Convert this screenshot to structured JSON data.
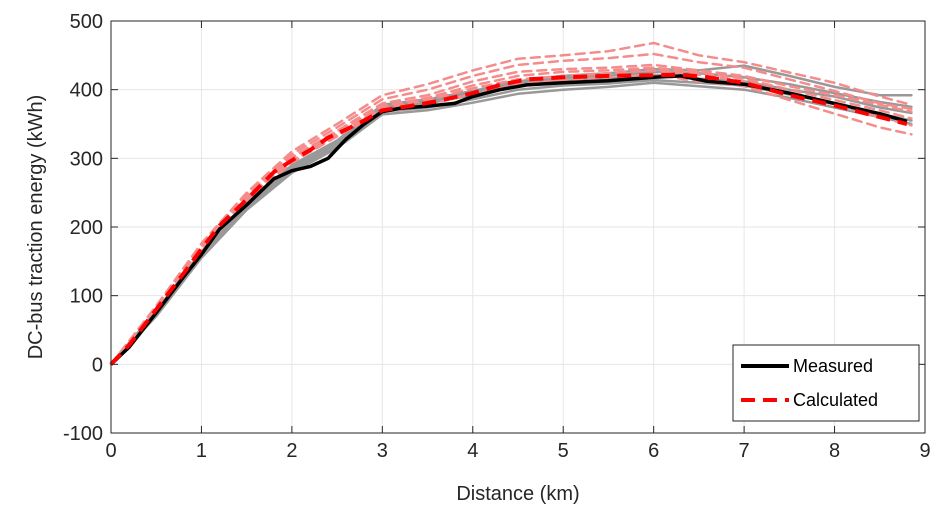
{
  "chart_data": {
    "type": "line",
    "title": "",
    "xlabel": "Distance (km)",
    "ylabel": "DC-bus traction energy (kWh)",
    "xlim": [
      0,
      9
    ],
    "ylim": [
      -100,
      500
    ],
    "xticks": [
      0,
      1,
      2,
      3,
      4,
      5,
      6,
      7,
      8,
      9
    ],
    "yticks": [
      -100,
      0,
      100,
      200,
      300,
      400,
      500
    ],
    "xtick_labels": [
      "0",
      "1",
      "2",
      "3",
      "4",
      "5",
      "6",
      "7",
      "8",
      "9"
    ],
    "ytick_labels": [
      "-100",
      "0",
      "100",
      "200",
      "300",
      "400",
      "500"
    ],
    "grid": true,
    "legend": "bottom-right",
    "series": [
      {
        "name": "Measured",
        "color": "#000000",
        "style": "solid",
        "x": [
          0,
          0.2,
          0.5,
          0.8,
          1.0,
          1.2,
          1.5,
          1.8,
          2.0,
          2.2,
          2.4,
          2.6,
          2.8,
          3.0,
          3.2,
          3.5,
          3.8,
          4.0,
          4.3,
          4.6,
          5.0,
          5.5,
          6.0,
          6.3,
          6.6,
          7.0,
          7.5,
          8.0,
          8.5,
          8.8
        ],
        "y": [
          0,
          25,
          75,
          127,
          160,
          197,
          232,
          270,
          282,
          288,
          300,
          328,
          350,
          368,
          373,
          376,
          380,
          390,
          400,
          407,
          410,
          413,
          418,
          420,
          412,
          408,
          395,
          380,
          365,
          354
        ]
      },
      {
        "name": "Calculated",
        "color": "#ff0000",
        "style": "dashed",
        "x": [
          0,
          0.2,
          0.5,
          0.8,
          1.0,
          1.2,
          1.5,
          1.8,
          2.0,
          2.2,
          2.4,
          2.6,
          2.8,
          3.0,
          3.3,
          3.6,
          4.0,
          4.3,
          4.6,
          5.0,
          5.5,
          6.0,
          6.3,
          6.6,
          7.0,
          7.5,
          8.0,
          8.5,
          8.8
        ],
        "y": [
          0,
          28,
          80,
          132,
          168,
          202,
          240,
          280,
          297,
          312,
          330,
          342,
          355,
          370,
          376,
          383,
          395,
          407,
          415,
          418,
          420,
          421,
          422,
          418,
          410,
          392,
          377,
          360,
          350
        ]
      }
    ],
    "background_traces": [
      {
        "color": "#999999",
        "style": "solid",
        "x": [
          0,
          0.5,
          1.0,
          1.5,
          2.0,
          2.5,
          3.0,
          3.5,
          4.0,
          4.5,
          5.0,
          5.5,
          6.0,
          6.5,
          7.0,
          7.5,
          8.0,
          8.5,
          8.85
        ],
        "y": [
          0,
          72,
          158,
          228,
          283,
          318,
          368,
          374,
          386,
          400,
          406,
          409,
          414,
          410,
          406,
          393,
          380,
          365,
          355
        ]
      },
      {
        "color": "#999999",
        "style": "solid",
        "x": [
          0,
          0.5,
          1.0,
          1.5,
          2.0,
          2.5,
          3.0,
          3.5,
          4.0,
          4.5,
          5.0,
          5.5,
          6.0,
          6.5,
          7.0,
          7.5,
          8.0,
          8.5,
          8.85
        ],
        "y": [
          0,
          78,
          164,
          236,
          290,
          326,
          378,
          386,
          398,
          412,
          420,
          424,
          430,
          428,
          435,
          420,
          404,
          392,
          392
        ]
      },
      {
        "color": "#999999",
        "style": "solid",
        "x": [
          0,
          0.5,
          1.0,
          1.5,
          2.0,
          2.5,
          3.0,
          3.5,
          4.0,
          4.5,
          5.0,
          5.5,
          6.0,
          6.5,
          7.0,
          7.5,
          8.0,
          8.5,
          8.85
        ],
        "y": [
          0,
          74,
          161,
          231,
          285,
          322,
          372,
          380,
          392,
          405,
          413,
          416,
          422,
          416,
          412,
          400,
          390,
          374,
          366
        ]
      },
      {
        "color": "#999999",
        "style": "solid",
        "x": [
          0,
          0.5,
          1.0,
          1.5,
          2.0,
          2.5,
          3.0,
          3.5,
          4.0,
          4.5,
          5.0,
          5.5,
          6.0,
          6.5,
          7.0,
          7.5,
          8.0,
          8.5,
          8.85
        ],
        "y": [
          0,
          70,
          155,
          225,
          279,
          315,
          364,
          370,
          381,
          394,
          400,
          404,
          410,
          405,
          400,
          388,
          374,
          360,
          350
        ]
      },
      {
        "color": "#999999",
        "style": "solid",
        "x": [
          0,
          0.5,
          1.0,
          1.5,
          2.0,
          2.5,
          3.0,
          3.5,
          4.0,
          4.5,
          5.0,
          5.5,
          6.0,
          6.5,
          7.0,
          7.5,
          8.0,
          8.5,
          8.85
        ],
        "y": [
          0,
          76,
          160,
          233,
          287,
          324,
          375,
          383,
          396,
          409,
          417,
          420,
          426,
          424,
          418,
          408,
          395,
          382,
          375
        ]
      },
      {
        "color": "#f48c8c",
        "style": "dashed",
        "x": [
          0,
          0.5,
          1.0,
          1.5,
          2.0,
          2.5,
          3.0,
          3.5,
          4.0,
          4.5,
          5.0,
          5.5,
          6.0,
          6.5,
          7.0,
          7.5,
          8.0,
          8.5,
          8.85
        ],
        "y": [
          0,
          82,
          172,
          245,
          302,
          340,
          380,
          392,
          412,
          426,
          430,
          432,
          436,
          428,
          420,
          405,
          392,
          378,
          368
        ]
      },
      {
        "color": "#f48c8c",
        "style": "dashed",
        "x": [
          0,
          0.5,
          1.0,
          1.5,
          2.0,
          2.5,
          3.0,
          3.5,
          4.0,
          4.5,
          5.0,
          5.5,
          6.0,
          6.5,
          7.0,
          7.5,
          8.0,
          8.5,
          8.85
        ],
        "y": [
          0,
          85,
          176,
          250,
          310,
          350,
          392,
          408,
          428,
          445,
          450,
          456,
          468,
          450,
          440,
          425,
          410,
          390,
          378
        ]
      },
      {
        "color": "#f48c8c",
        "style": "dashed",
        "x": [
          0,
          0.5,
          1.0,
          1.5,
          2.0,
          2.5,
          3.0,
          3.5,
          4.0,
          4.5,
          5.0,
          5.5,
          6.0,
          6.5,
          7.0,
          7.5,
          8.0,
          8.5,
          8.85
        ],
        "y": [
          0,
          80,
          168,
          240,
          296,
          335,
          372,
          385,
          402,
          415,
          420,
          424,
          428,
          422,
          412,
          395,
          378,
          360,
          348
        ]
      },
      {
        "color": "#f48c8c",
        "style": "dashed",
        "x": [
          0,
          0.5,
          1.0,
          1.5,
          2.0,
          2.5,
          3.0,
          3.5,
          4.0,
          4.5,
          5.0,
          5.5,
          6.0,
          6.5,
          7.0,
          7.5,
          8.0,
          8.5,
          8.85
        ],
        "y": [
          0,
          78,
          165,
          238,
          294,
          332,
          368,
          378,
          394,
          408,
          414,
          418,
          422,
          412,
          405,
          385,
          365,
          345,
          335
        ]
      },
      {
        "color": "#f48c8c",
        "style": "dashed",
        "x": [
          0,
          0.5,
          1.0,
          1.5,
          2.0,
          2.5,
          3.0,
          3.5,
          4.0,
          4.5,
          5.0,
          5.5,
          6.0,
          6.5,
          7.0,
          7.5,
          8.0,
          8.5,
          8.85
        ],
        "y": [
          0,
          84,
          174,
          248,
          306,
          345,
          386,
          400,
          420,
          436,
          442,
          446,
          452,
          440,
          432,
          415,
          398,
          380,
          372
        ]
      },
      {
        "color": "#f48c8c",
        "style": "dashed",
        "x": [
          0,
          0.5,
          1.0,
          1.5,
          2.0,
          2.5,
          3.0,
          3.5,
          4.0,
          4.5,
          5.0,
          5.5,
          6.0,
          6.5,
          7.0,
          7.5,
          8.0,
          8.5,
          8.85
        ],
        "y": [
          0,
          81,
          170,
          243,
          300,
          338,
          376,
          388,
          406,
          420,
          426,
          428,
          432,
          425,
          416,
          400,
          385,
          370,
          358
        ]
      }
    ]
  }
}
